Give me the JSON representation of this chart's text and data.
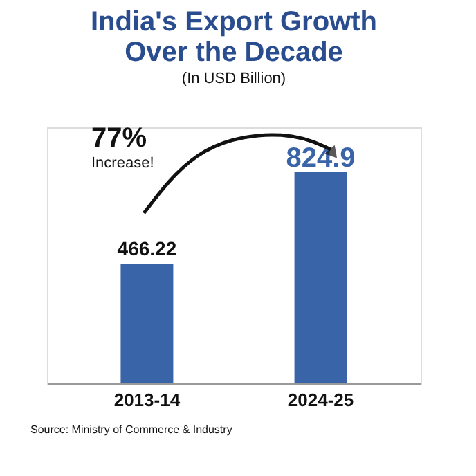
{
  "chart_data": {
    "type": "bar",
    "title": "India's Export Growth Over the Decade",
    "subtitle": "(In USD Billion)",
    "categories": [
      "2013-14",
      "2024-25"
    ],
    "values": [
      466.22,
      824.9
    ],
    "color": "#3a64a8",
    "data_labels": true,
    "grid": false,
    "annotations": [
      "77%",
      "Increase!",
      "Source: Ministry of Commerce & Industry"
    ]
  }
}
